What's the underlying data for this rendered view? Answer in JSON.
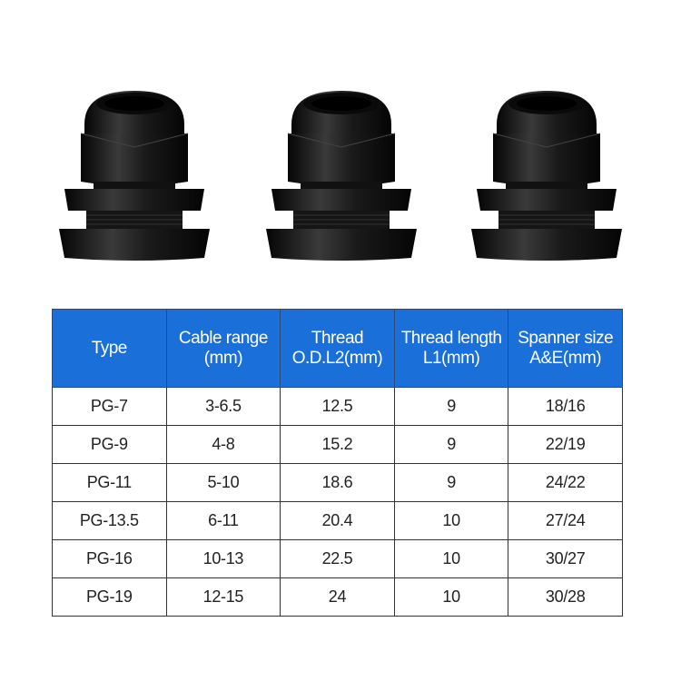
{
  "table": {
    "headers": [
      [
        "Type",
        ""
      ],
      [
        "Cable range",
        "(mm)"
      ],
      [
        "Thread",
        "O.D.L2(mm)"
      ],
      [
        "Thread length",
        "L1(mm)"
      ],
      [
        "Spanner size",
        "A&E(mm)"
      ]
    ],
    "rows": [
      [
        "PG-7",
        "3-6.5",
        "12.5",
        "9",
        "18/16"
      ],
      [
        "PG-9",
        "4-8",
        "15.2",
        "9",
        "22/19"
      ],
      [
        "PG-11",
        "5-10",
        "18.6",
        "9",
        "24/22"
      ],
      [
        "PG-13.5",
        "6-11",
        "20.4",
        "10",
        "27/24"
      ],
      [
        "PG-16",
        "10-13",
        "22.5",
        "10",
        "30/27"
      ],
      [
        "PG-19",
        "12-15",
        "24",
        "10",
        "30/28"
      ]
    ]
  },
  "colors": {
    "header_bg": "#1b6fd9",
    "header_text": "#ffffff",
    "product": "#111111"
  }
}
